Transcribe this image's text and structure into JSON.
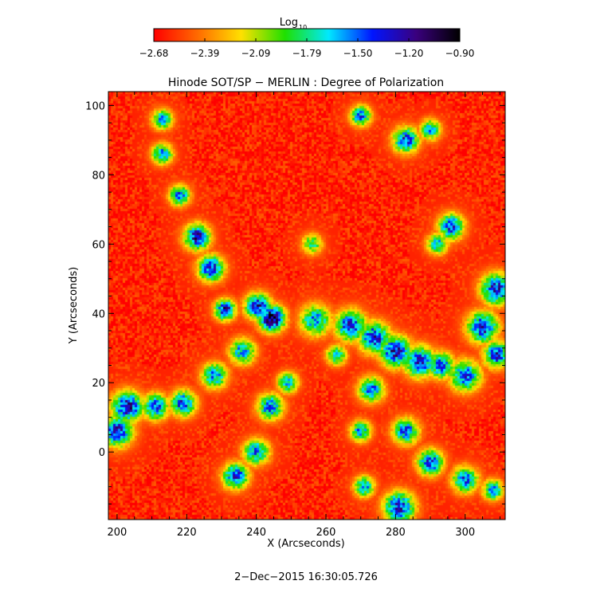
{
  "colorbar": {
    "label": "Log",
    "label_subscript": "10",
    "tick_labels": [
      "−2.68",
      "−2.39",
      "−2.09",
      "−1.79",
      "−1.50",
      "−1.20",
      "−0.90"
    ],
    "colors": [
      "#ff0000",
      "#ff6a00",
      "#ffe000",
      "#1fe000",
      "#00e8ff",
      "#0015ff",
      "#3a007e",
      "#000000"
    ]
  },
  "chart_data": {
    "type": "heatmap",
    "title": "Hinode SOT/SP − MERLIN : Degree of Polarization",
    "xlabel": "X (Arcseconds)",
    "ylabel": "Y (Arcseconds)",
    "xlim": [
      197.5,
      311.5
    ],
    "ylim": [
      -19.5,
      104
    ],
    "x_ticks": [
      200,
      220,
      240,
      260,
      280,
      300
    ],
    "x_tick_labels": [
      "200",
      "220",
      "240",
      "260",
      "280",
      "300"
    ],
    "y_ticks": [
      0,
      20,
      40,
      60,
      80,
      100
    ],
    "y_tick_labels": [
      "0",
      "20",
      "40",
      "60",
      "80",
      "100"
    ],
    "value_range": [
      -2.68,
      -0.9
    ],
    "value_scale": "log10",
    "background_level": -2.6,
    "network_features": [
      {
        "x": 244.5,
        "y": 38.5,
        "r": 2.5,
        "peak": -1.0
      },
      {
        "x": 240.5,
        "y": 42,
        "r": 2.5,
        "peak": -1.3
      },
      {
        "x": 257,
        "y": 38,
        "r": 3,
        "peak": -1.55
      },
      {
        "x": 267,
        "y": 36.5,
        "r": 3,
        "peak": -1.35
      },
      {
        "x": 274,
        "y": 33,
        "r": 3,
        "peak": -1.3
      },
      {
        "x": 280,
        "y": 29,
        "r": 3,
        "peak": -1.25
      },
      {
        "x": 287,
        "y": 26,
        "r": 3,
        "peak": -1.3
      },
      {
        "x": 293,
        "y": 25,
        "r": 2.5,
        "peak": -1.4
      },
      {
        "x": 300,
        "y": 22,
        "r": 3,
        "peak": -1.45
      },
      {
        "x": 231,
        "y": 41,
        "r": 2,
        "peak": -1.25
      },
      {
        "x": 227,
        "y": 53,
        "r": 2.5,
        "peak": -1.3
      },
      {
        "x": 223,
        "y": 62,
        "r": 2.5,
        "peak": -1.25
      },
      {
        "x": 218,
        "y": 74,
        "r": 2,
        "peak": -1.5
      },
      {
        "x": 213,
        "y": 86,
        "r": 2,
        "peak": -1.5
      },
      {
        "x": 213,
        "y": 96,
        "r": 2,
        "peak": -1.6
      },
      {
        "x": 236,
        "y": 29,
        "r": 2.5,
        "peak": -1.55
      },
      {
        "x": 228,
        "y": 22,
        "r": 2.5,
        "peak": -1.55
      },
      {
        "x": 219,
        "y": 14,
        "r": 2.5,
        "peak": -1.4
      },
      {
        "x": 211,
        "y": 13,
        "r": 2.5,
        "peak": -1.4
      },
      {
        "x": 203,
        "y": 13,
        "r": 3,
        "peak": -1.25
      },
      {
        "x": 200,
        "y": 6,
        "r": 3,
        "peak": -1.3
      },
      {
        "x": 244,
        "y": 13,
        "r": 2.5,
        "peak": -1.45
      },
      {
        "x": 240,
        "y": 0,
        "r": 2.5,
        "peak": -1.5
      },
      {
        "x": 234,
        "y": -7,
        "r": 2.5,
        "peak": -1.35
      },
      {
        "x": 249,
        "y": 20,
        "r": 2,
        "peak": -1.6
      },
      {
        "x": 270,
        "y": 97,
        "r": 2,
        "peak": -1.5
      },
      {
        "x": 283,
        "y": 90,
        "r": 2.5,
        "peak": -1.4
      },
      {
        "x": 290,
        "y": 93,
        "r": 2,
        "peak": -1.6
      },
      {
        "x": 296,
        "y": 65,
        "r": 2.5,
        "peak": -1.4
      },
      {
        "x": 292,
        "y": 60,
        "r": 2,
        "peak": -1.6
      },
      {
        "x": 309,
        "y": 47,
        "r": 3,
        "peak": -1.3
      },
      {
        "x": 305,
        "y": 36,
        "r": 3,
        "peak": -1.3
      },
      {
        "x": 309,
        "y": 28,
        "r": 2.5,
        "peak": -1.35
      },
      {
        "x": 273,
        "y": 18,
        "r": 2.5,
        "peak": -1.5
      },
      {
        "x": 270,
        "y": 6,
        "r": 2,
        "peak": -1.55
      },
      {
        "x": 283,
        "y": 6,
        "r": 2.5,
        "peak": -1.45
      },
      {
        "x": 290,
        "y": -3,
        "r": 2.5,
        "peak": -1.35
      },
      {
        "x": 300,
        "y": -8,
        "r": 2.5,
        "peak": -1.45
      },
      {
        "x": 308,
        "y": -11,
        "r": 2,
        "peak": -1.55
      },
      {
        "x": 281,
        "y": -16,
        "r": 3,
        "peak": -1.3
      },
      {
        "x": 271,
        "y": -10,
        "r": 2,
        "peak": -1.55
      },
      {
        "x": 256,
        "y": 60,
        "r": 2,
        "peak": -1.8
      },
      {
        "x": 263,
        "y": 28,
        "r": 2,
        "peak": -1.7
      }
    ]
  },
  "footer": {
    "timestamp": "2−Dec−2015 16:30:05.726"
  }
}
